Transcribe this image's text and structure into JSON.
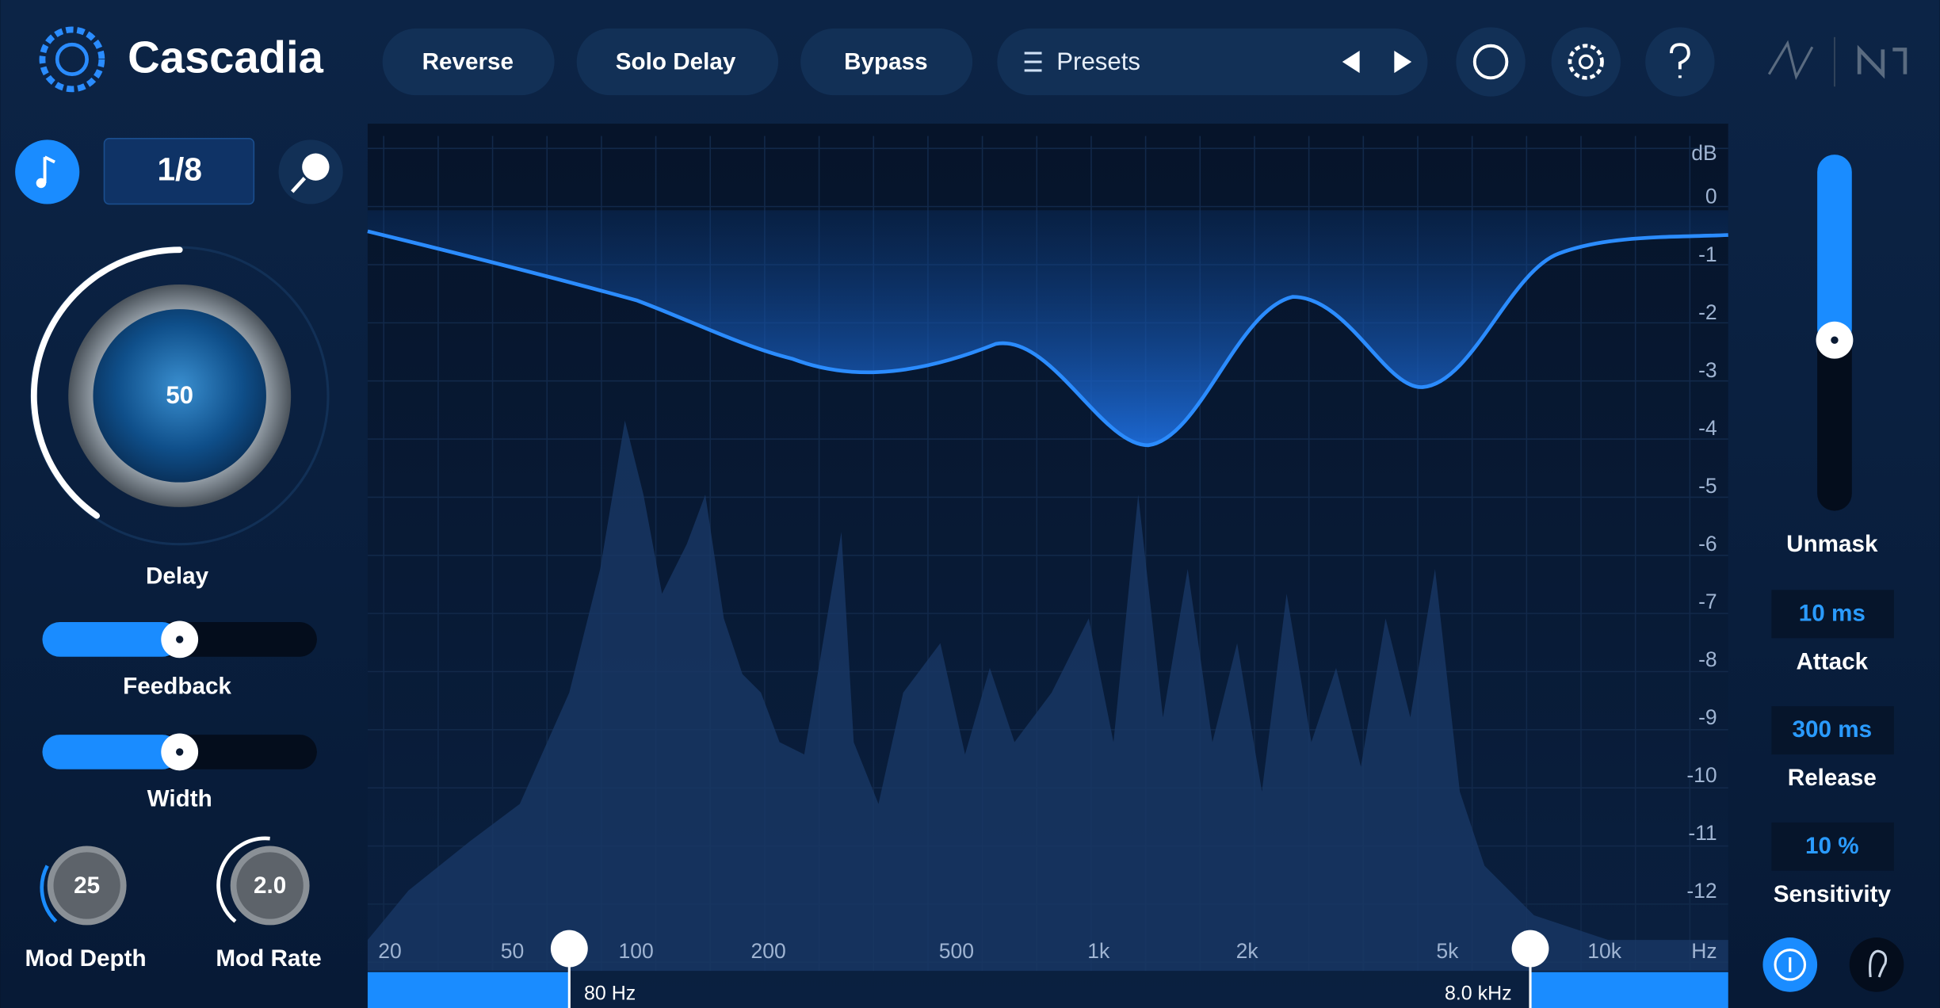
{
  "header": {
    "title": "Cascadia",
    "buttons": [
      "Reverse",
      "Solo Delay",
      "Bypass"
    ],
    "presets": "Presets"
  },
  "left_panel": {
    "sync": "1/8",
    "delay": {
      "value": "50",
      "label": "Delay"
    },
    "feedback": "Feedback",
    "width": "Width",
    "mod_depth": {
      "value": "25",
      "label": "Mod Depth"
    },
    "mod_rate": {
      "value": "2.0",
      "label": "Mod Rate"
    }
  },
  "display": {
    "db_unit": "dB",
    "db_ticks": [
      "0",
      "-1",
      "-2",
      "-3",
      "-4",
      "-5",
      "-6",
      "-7",
      "-8",
      "-9",
      "-10",
      "-11",
      "-12"
    ],
    "hz_unit": "Hz",
    "hz_ticks": [
      "20",
      "50",
      "100",
      "200",
      "500",
      "1k",
      "2k",
      "5k",
      "10k"
    ],
    "low_cut": "80 Hz",
    "high_cut": "8.0 kHz"
  },
  "right_panel": {
    "unmask": "Unmask",
    "attack": {
      "value": "10 ms",
      "label": "Attack"
    },
    "release": {
      "value": "300 ms",
      "label": "Release"
    },
    "sensitivity": {
      "value": "10 %",
      "label": "Sensitivity"
    }
  }
}
